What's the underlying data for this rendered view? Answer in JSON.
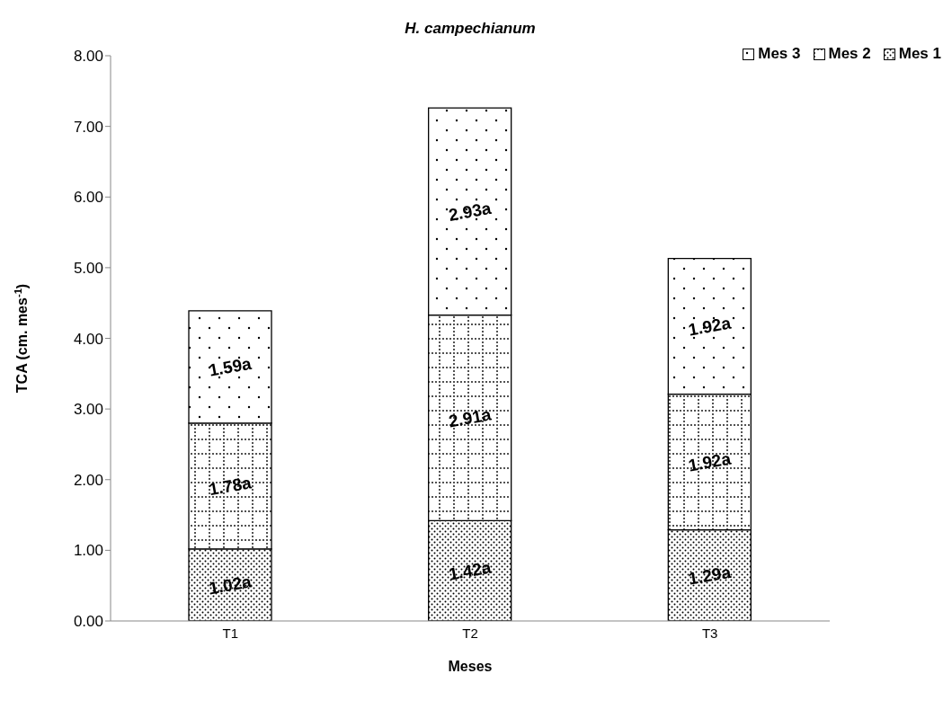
{
  "chart_data": {
    "type": "bar",
    "title": "H. campechianum",
    "xlabel": "Meses",
    "ylabel": "TCA (cm. mes$^{-1}$)",
    "stacked": true,
    "legend": "top right",
    "categories": [
      "T1",
      "T2",
      "T3"
    ],
    "ylim": [
      0,
      8
    ],
    "yticks": [
      {
        "value": 0,
        "label": "0.00"
      },
      {
        "value": 1,
        "label": "1.00"
      },
      {
        "value": 2,
        "label": "2.00"
      },
      {
        "value": 3,
        "label": "3.00"
      },
      {
        "value": 4,
        "label": "4.00"
      },
      {
        "value": 5,
        "label": "5.00"
      },
      {
        "value": 6,
        "label": "6.00"
      },
      {
        "value": 7,
        "label": "7.00"
      },
      {
        "value": 8,
        "label": "8.00"
      }
    ],
    "series": [
      {
        "name": "Mes 1",
        "color": "#000000",
        "values": [
          1.02,
          1.42,
          1.29
        ],
        "value_labels": [
          "1.02a",
          "1.42a",
          "1.29a"
        ]
      },
      {
        "name": "Mes 2",
        "color": "#000000",
        "values": [
          1.78,
          2.91,
          1.92
        ],
        "value_labels": [
          "1.78a",
          "2.91a",
          "1.92a"
        ]
      },
      {
        "name": "Mes 3",
        "color": "#000000",
        "values": [
          1.59,
          2.93,
          1.92
        ],
        "value_labels": [
          "1.59a",
          "2.93a",
          "1.92a"
        ]
      }
    ]
  }
}
